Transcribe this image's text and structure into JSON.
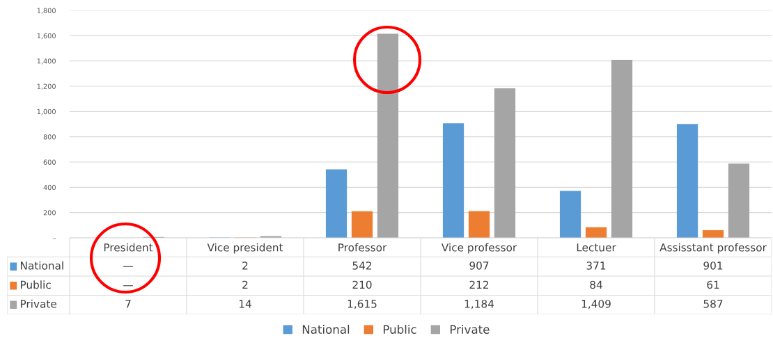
{
  "chart_data": {
    "type": "bar",
    "categories": [
      "President",
      "Vice president",
      "Professor",
      "Vice professor",
      "Lectuer",
      "Assisstant professor"
    ],
    "series": [
      {
        "name": "National",
        "color": "#5b9bd5",
        "values": [
          null,
          2,
          542,
          907,
          371,
          901
        ],
        "value_labels": [
          "—",
          "2",
          "542",
          "907",
          "371",
          "901"
        ]
      },
      {
        "name": "Public",
        "color": "#ed7d31",
        "values": [
          null,
          2,
          210,
          212,
          84,
          61
        ],
        "value_labels": [
          "—",
          "2",
          "210",
          "212",
          "84",
          "61"
        ]
      },
      {
        "name": "Private",
        "color": "#a5a5a5",
        "values": [
          7,
          14,
          1615,
          1184,
          1409,
          587
        ],
        "value_labels": [
          "7",
          "14",
          "1,615",
          "1,184",
          "1,409",
          "587"
        ]
      }
    ],
    "ylim": [
      0,
      1800
    ],
    "yticks": [
      {
        "value": 0,
        "label": "–"
      },
      {
        "value": 200,
        "label": "200"
      },
      {
        "value": 400,
        "label": "400"
      },
      {
        "value": 600,
        "label": "600"
      },
      {
        "value": 800,
        "label": "800"
      },
      {
        "value": 1000,
        "label": "1,000"
      },
      {
        "value": 1200,
        "label": "1,200"
      },
      {
        "value": 1400,
        "label": "1,400"
      },
      {
        "value": 1600,
        "label": "1,600"
      },
      {
        "value": 1800,
        "label": "1,800"
      }
    ],
    "grid": "y",
    "legend": "bottom"
  }
}
